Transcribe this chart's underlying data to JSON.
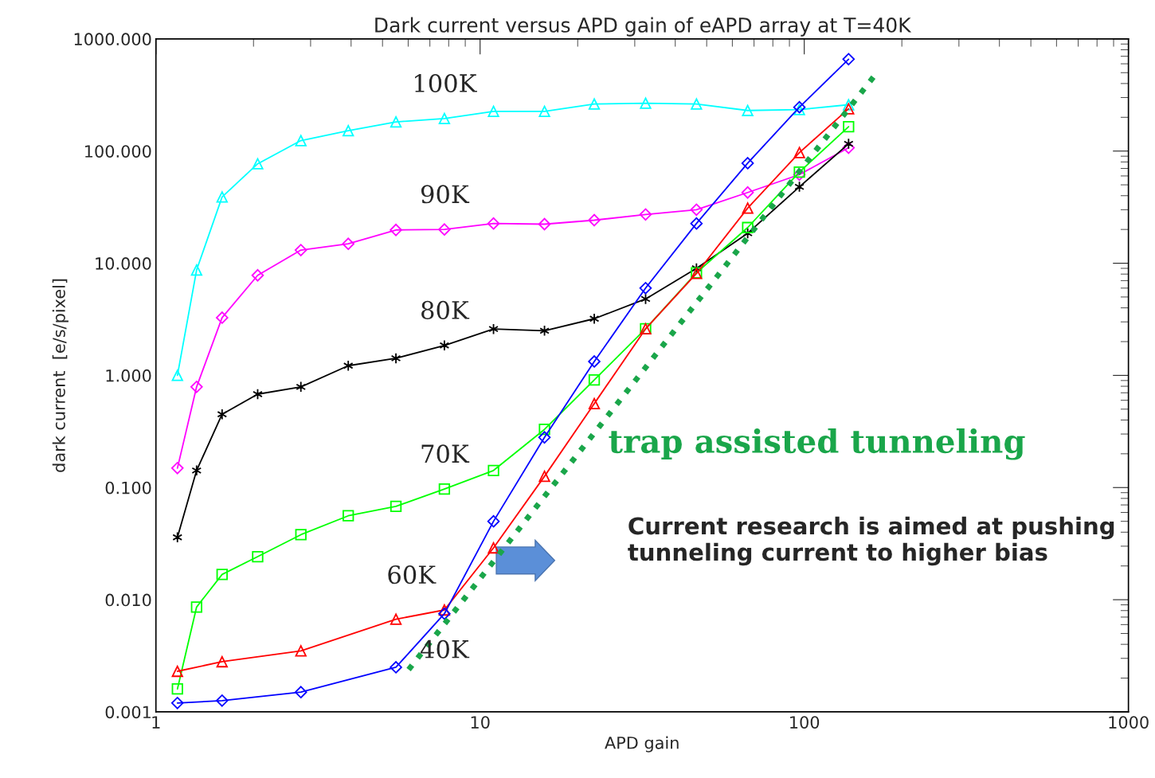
{
  "chart_data": {
    "type": "line",
    "title": "Dark current versus APD gain of eAPD array at T=40K",
    "xlabel": "APD gain",
    "ylabel": "dark current  [e/s/pixel]",
    "log": "xy",
    "grid": false,
    "legend": false,
    "xlim": [
      1,
      1000
    ],
    "xticks": [
      1,
      10,
      100,
      1000
    ],
    "ylim": [
      0.001,
      1000
    ],
    "yticks": [
      {
        "value": 0.001,
        "label": "0.001"
      },
      {
        "value": 0.01,
        "label": "0.010"
      },
      {
        "value": 0.1,
        "label": "0.100"
      },
      {
        "value": 1,
        "label": "1.000"
      },
      {
        "value": 10,
        "label": "10.000"
      },
      {
        "value": 100,
        "label": "100.000"
      },
      {
        "value": 1000,
        "label": "1000.000"
      }
    ],
    "series": [
      {
        "name": "100K",
        "color": "#00ffff",
        "marker": "triangle",
        "x": [
          1.165,
          1.335,
          1.6,
          2.06,
          2.8,
          3.92,
          5.5,
          7.76,
          11.0,
          15.8,
          22.5,
          32.4,
          46.5,
          66.9,
          96.6,
          137
        ],
        "values": [
          1.0,
          8.7,
          39,
          77,
          124,
          152,
          182,
          195,
          226,
          226,
          263,
          267,
          263,
          230,
          234,
          259
        ]
      },
      {
        "name": "90K",
        "color": "#ff00ff",
        "marker": "diamond",
        "x": [
          1.165,
          1.335,
          1.6,
          2.06,
          2.8,
          3.92,
          5.5,
          7.76,
          11.0,
          15.8,
          22.5,
          32.4,
          46.5,
          66.9,
          96.6,
          137
        ],
        "values": [
          0.149,
          0.79,
          3.27,
          7.8,
          13.1,
          14.9,
          19.8,
          20,
          22.6,
          22.3,
          24.2,
          27.2,
          30,
          42.7,
          61.7,
          107
        ]
      },
      {
        "name": "80K",
        "color": "#000000",
        "marker": "cross",
        "x": [
          1.165,
          1.335,
          1.6,
          2.06,
          2.8,
          3.92,
          5.5,
          7.76,
          11.0,
          15.8,
          22.5,
          32.4,
          46.5,
          66.9,
          96.6,
          137
        ],
        "values": [
          0.036,
          0.142,
          0.45,
          0.68,
          0.79,
          1.22,
          1.42,
          1.85,
          2.59,
          2.5,
          3.2,
          4.8,
          9.0,
          18.5,
          48,
          116
        ]
      },
      {
        "name": "70K",
        "color": "#00ff00",
        "marker": "square",
        "x": [
          1.165,
          1.335,
          1.6,
          2.06,
          2.8,
          3.92,
          5.5,
          7.76,
          11.0,
          15.8,
          22.5,
          32.4,
          46.5,
          66.9,
          96.6,
          137
        ],
        "values": [
          0.0016,
          0.0086,
          0.0168,
          0.0242,
          0.038,
          0.056,
          0.068,
          0.097,
          0.142,
          0.33,
          0.91,
          2.6,
          8.2,
          20.8,
          65,
          165
        ]
      },
      {
        "name": "60K",
        "color": "#ff0000",
        "marker": "triangle",
        "x": [
          1.165,
          1.6,
          2.8,
          5.5,
          7.76,
          11.0,
          15.8,
          22.5,
          32.4,
          46.5,
          66.9,
          96.6,
          137
        ],
        "values": [
          0.0023,
          0.0028,
          0.0035,
          0.0067,
          0.0081,
          0.029,
          0.126,
          0.56,
          2.6,
          8.1,
          31,
          97,
          238
        ]
      },
      {
        "name": "40K",
        "color": "#0000ff",
        "marker": "diamond",
        "x": [
          1.165,
          1.6,
          2.8,
          5.5,
          7.76,
          11.0,
          15.8,
          22.5,
          32.4,
          46.5,
          66.9,
          96.6,
          137
        ],
        "values": [
          0.0012,
          0.00126,
          0.0015,
          0.0025,
          0.0075,
          0.05,
          0.28,
          1.33,
          6.0,
          22.6,
          78,
          246,
          659
        ]
      },
      {
        "color": "#1aa64a",
        "marker": "none",
        "line_style": "dotted",
        "x": [
          6.02,
          165.6
        ],
        "values": [
          0.00238,
          480
        ]
      }
    ],
    "annotations": [
      "trap assisted tunneling",
      "Current research is aimed at pushing tunneling current to higher bias"
    ]
  }
}
